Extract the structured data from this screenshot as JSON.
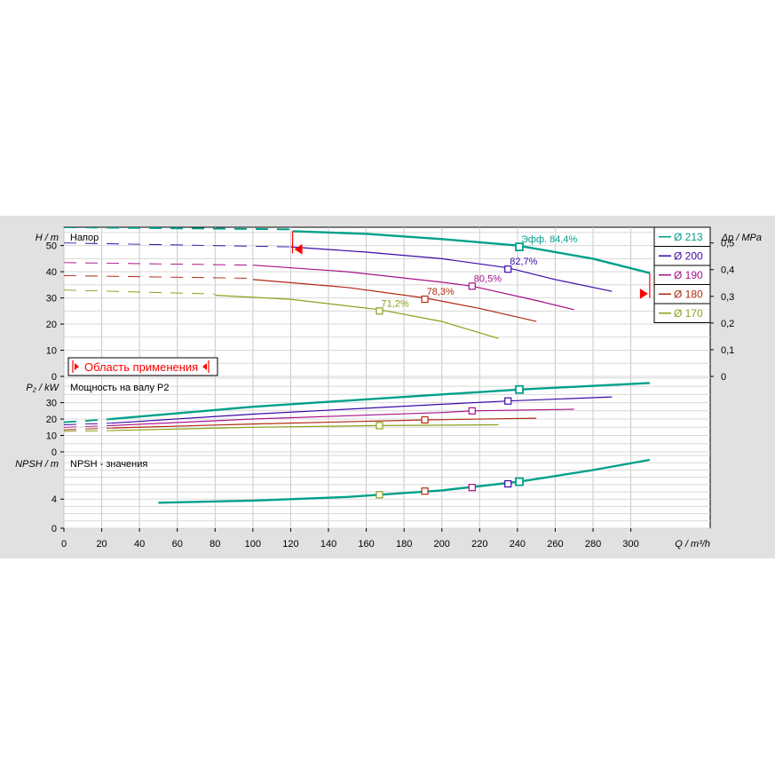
{
  "chart_data": {
    "type": "line",
    "x": {
      "label": "Q / m³/h",
      "ticks": [
        0,
        20,
        40,
        60,
        80,
        100,
        120,
        140,
        160,
        180,
        200,
        220,
        240,
        260,
        280,
        300
      ],
      "lim": [
        0,
        342
      ]
    },
    "legend": {
      "placement": "top-right",
      "entries": [
        {
          "label": "Ø 213",
          "color": "#00a08a"
        },
        {
          "label": "Ø 200",
          "color": "#3a0aa8"
        },
        {
          "label": "Ø 190",
          "color": "#a8108a"
        },
        {
          "label": "Ø 180",
          "color": "#b02a10"
        },
        {
          "label": "Ø 170",
          "color": "#8aa01a"
        }
      ]
    },
    "range_box": {
      "label": "Область применения",
      "color": "#ff0000"
    },
    "panels": [
      {
        "id": "head",
        "title": "Напор",
        "ylabel_left": "H / m",
        "ylabel_right": "Δp / MPa",
        "ylim": [
          0,
          57
        ],
        "yticks": [
          0,
          10,
          20,
          30,
          40,
          50
        ],
        "yticks_right": [
          "0",
          "0,1",
          "0,2",
          "0,3",
          "0,4",
          "0,5"
        ],
        "series": [
          {
            "name": "Ø 213",
            "color": "#00a08a",
            "bold": true,
            "dashed": [
              [
                0,
                57
              ],
              [
                121,
                56.2
              ]
            ],
            "solid": [
              [
                121,
                55.5
              ],
              [
                160,
                54.5
              ],
              [
                200,
                52.5
              ],
              [
                240,
                50
              ],
              [
                280,
                45
              ],
              [
                310,
                39.5
              ]
            ],
            "eff_point": [
              241,
              49.5
            ],
            "eff_label": "Эфф.  84,4%"
          },
          {
            "name": "Ø 200",
            "color": "#3a0aa8",
            "dashed": [
              [
                0,
                51
              ],
              [
                120,
                49.5
              ]
            ],
            "solid": [
              [
                120,
                49.5
              ],
              [
                160,
                47.5
              ],
              [
                200,
                45
              ],
              [
                235,
                41.5
              ],
              [
                260,
                37
              ],
              [
                290,
                32.5
              ]
            ],
            "eff_point": [
              235,
              41
            ],
            "eff_label": "82,7%"
          },
          {
            "name": "Ø 190",
            "color": "#a8108a",
            "dashed": [
              [
                0,
                43.5
              ],
              [
                100,
                42.5
              ]
            ],
            "solid": [
              [
                100,
                42.5
              ],
              [
                150,
                40
              ],
              [
                200,
                36
              ],
              [
                216,
                34.5
              ],
              [
                250,
                29
              ],
              [
                270,
                25.5
              ]
            ],
            "eff_point": [
              216,
              34.5
            ],
            "eff_label": "80,5%"
          },
          {
            "name": "Ø 180",
            "color": "#b02a10",
            "dashed": [
              [
                0,
                38.5
              ],
              [
                100,
                37.5
              ]
            ],
            "solid": [
              [
                100,
                37
              ],
              [
                150,
                34
              ],
              [
                191,
                30
              ],
              [
                220,
                26
              ],
              [
                250,
                21
              ]
            ],
            "eff_point": [
              191,
              29.5
            ],
            "eff_label": "78,3%"
          },
          {
            "name": "Ø 170",
            "color": "#8aa01a",
            "dashed": [
              [
                0,
                33
              ],
              [
                80,
                31.5
              ]
            ],
            "solid": [
              [
                80,
                31
              ],
              [
                120,
                29.5
              ],
              [
                167,
                25.5
              ],
              [
                200,
                21
              ],
              [
                230,
                14.5
              ]
            ],
            "eff_point": [
              167,
              25
            ],
            "eff_label": "71,2%"
          }
        ]
      },
      {
        "id": "power",
        "title": "Мощность на валу P2",
        "ylabel_left": "P₂ / kW",
        "ylim": [
          0,
          46
        ],
        "yticks": [
          0,
          10,
          20,
          30
        ],
        "series": [
          {
            "name": "Ø 213",
            "color": "#00a08a",
            "bold": true,
            "dashed": [
              [
                0,
                18
              ],
              [
                25,
                20
              ]
            ],
            "solid": [
              [
                25,
                20
              ],
              [
                100,
                27.5
              ],
              [
                200,
                35
              ],
              [
                241,
                38
              ],
              [
                310,
                42
              ]
            ],
            "eff_point": [
              241,
              38
            ]
          },
          {
            "name": "Ø 200",
            "color": "#3a0aa8",
            "dashed": [
              [
                0,
                16.5
              ],
              [
                25,
                17.5
              ]
            ],
            "solid": [
              [
                25,
                17.5
              ],
              [
                100,
                23
              ],
              [
                200,
                29
              ],
              [
                235,
                31
              ],
              [
                290,
                33.5
              ]
            ],
            "eff_point": [
              235,
              31
            ]
          },
          {
            "name": "Ø 190",
            "color": "#a8108a",
            "dashed": [
              [
                0,
                15
              ],
              [
                25,
                16
              ]
            ],
            "solid": [
              [
                25,
                16
              ],
              [
                100,
                20
              ],
              [
                200,
                24
              ],
              [
                216,
                25
              ],
              [
                270,
                26
              ]
            ],
            "eff_point": [
              216,
              25
            ]
          },
          {
            "name": "Ø 180",
            "color": "#b02a10",
            "dashed": [
              [
                0,
                13.5
              ],
              [
                25,
                14.5
              ]
            ],
            "solid": [
              [
                25,
                14.5
              ],
              [
                100,
                17
              ],
              [
                191,
                19.5
              ],
              [
                250,
                20.5
              ]
            ],
            "eff_point": [
              191,
              19.5
            ]
          },
          {
            "name": "Ø 170",
            "color": "#8aa01a",
            "dashed": [
              [
                0,
                12.5
              ],
              [
                25,
                13
              ]
            ],
            "solid": [
              [
                25,
                13
              ],
              [
                100,
                15
              ],
              [
                167,
                16
              ],
              [
                230,
                16.5
              ]
            ],
            "eff_point": [
              167,
              16
            ]
          }
        ]
      },
      {
        "id": "npsh",
        "title": "NPSH - значения",
        "ylabel_left": "NPSH / m",
        "ylim": [
          0,
          10.5
        ],
        "yticks": [
          0,
          4
        ],
        "series": [
          {
            "name": "Ø 213",
            "color": "#00a08a",
            "bold": true,
            "solid": [
              [
                50,
                3.5
              ],
              [
                100,
                3.8
              ],
              [
                150,
                4.3
              ],
              [
                200,
                5.2
              ],
              [
                241,
                6.4
              ],
              [
                280,
                8
              ],
              [
                310,
                9.4
              ]
            ],
            "eff_point": [
              241,
              6.4
            ]
          },
          {
            "name": "Ø 200",
            "color": "#3a0aa8",
            "solid": [],
            "eff_point": [
              235,
              6.1
            ]
          },
          {
            "name": "Ø 190",
            "color": "#a8108a",
            "solid": [],
            "eff_point": [
              216,
              5.6
            ]
          },
          {
            "name": "Ø 180",
            "color": "#b02a10",
            "solid": [],
            "eff_point": [
              191,
              5.1
            ]
          },
          {
            "name": "Ø 170",
            "color": "#8aa01a",
            "solid": [],
            "eff_point": [
              167,
              4.6
            ]
          }
        ]
      }
    ]
  }
}
